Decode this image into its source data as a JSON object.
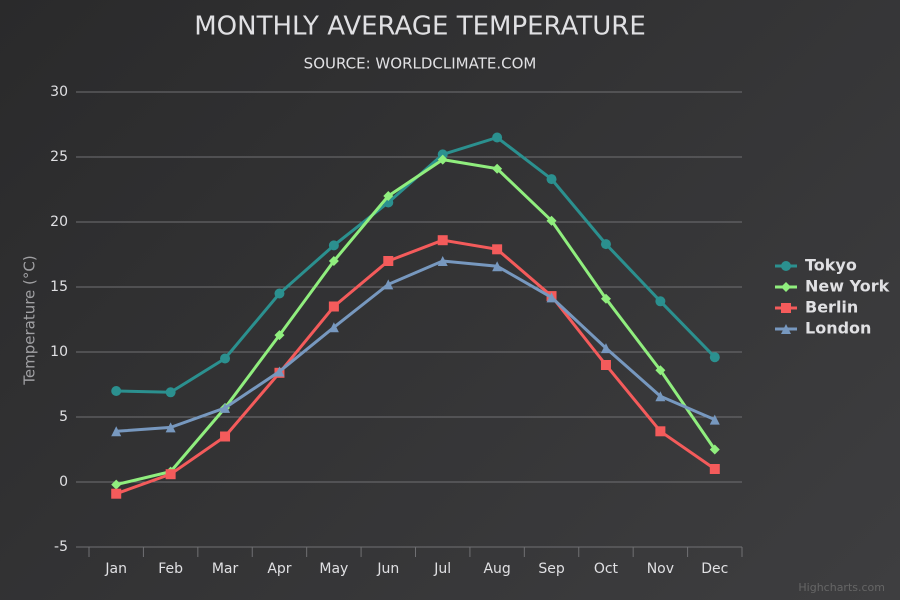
{
  "chart_data": {
    "type": "line",
    "title": "MONTHLY AVERAGE TEMPERATURE",
    "subtitle": "SOURCE: WORLDCLIMATE.COM",
    "y_label": "Temperature (°C)",
    "credits": "Highcharts.com",
    "categories": [
      "Jan",
      "Feb",
      "Mar",
      "Apr",
      "May",
      "Jun",
      "Jul",
      "Aug",
      "Sep",
      "Oct",
      "Nov",
      "Dec"
    ],
    "series": [
      {
        "name": "Tokyo",
        "color": "#2b908f",
        "marker": "circle",
        "values": [
          7.0,
          6.9,
          9.5,
          14.5,
          18.2,
          21.5,
          25.2,
          26.5,
          23.3,
          18.3,
          13.9,
          9.6
        ]
      },
      {
        "name": "New York",
        "color": "#90ee7e",
        "marker": "diamond",
        "values": [
          -0.2,
          0.8,
          5.7,
          11.3,
          17.0,
          22.0,
          24.8,
          24.1,
          20.1,
          14.1,
          8.6,
          2.5
        ]
      },
      {
        "name": "Berlin",
        "color": "#f45b5b",
        "marker": "square",
        "values": [
          -0.9,
          0.6,
          3.5,
          8.4,
          13.5,
          17.0,
          18.6,
          17.9,
          14.3,
          9.0,
          3.9,
          1.0
        ]
      },
      {
        "name": "London",
        "color": "#7798bf",
        "marker": "triangle",
        "values": [
          3.9,
          4.2,
          5.7,
          8.5,
          11.9,
          15.2,
          17.0,
          16.6,
          14.2,
          10.3,
          6.6,
          4.8
        ]
      }
    ],
    "ylim": [
      -5,
      30
    ],
    "yticks": [
      -5,
      0,
      5,
      10,
      15,
      20,
      25,
      30
    ],
    "grid": true,
    "legend": "right"
  }
}
